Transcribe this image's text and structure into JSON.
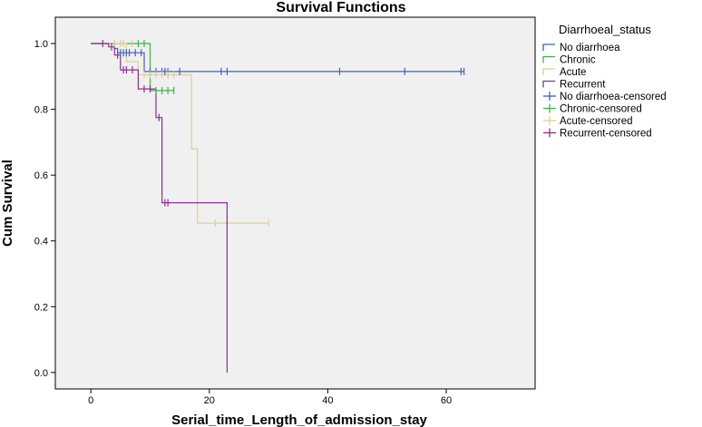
{
  "chart_data": {
    "type": "line",
    "chart_kind": "kaplan-meier step curves",
    "title": "Survival Functions",
    "xlabel": "Serial_time_Length_of_admission_stay",
    "ylabel": "Cum Survival",
    "xlim": [
      -6,
      75
    ],
    "ylim": [
      -0.05,
      1.08
    ],
    "x_ticks": [
      0,
      20,
      40,
      60
    ],
    "y_ticks": [
      0.0,
      0.2,
      0.4,
      0.6,
      0.8,
      1.0
    ],
    "y_tick_labels": [
      "0.0",
      "0.2",
      "0.4",
      "0.6",
      "0.8",
      "1.0"
    ],
    "grid": false,
    "plot_background": "#f0f0f0",
    "legend": {
      "title": "Diarrhoeal_status",
      "position": "right",
      "entries": [
        "No diarrhoea",
        "Chronic",
        "Acute",
        "Recurrent",
        "No diarrhoea-censored",
        "Chronic-censored",
        "Acute-censored",
        "Recurrent-censored"
      ]
    },
    "series": [
      {
        "name": "No diarrhoea",
        "color": "#4060b8",
        "steps": [
          [
            0,
            1.0
          ],
          [
            4,
            1.0
          ],
          [
            4,
            0.985
          ],
          [
            4.5,
            0.985
          ],
          [
            4.5,
            0.972
          ],
          [
            9,
            0.972
          ],
          [
            9,
            0.915
          ],
          [
            63,
            0.915
          ]
        ],
        "censored": [
          [
            5,
            0.972
          ],
          [
            5.5,
            0.972
          ],
          [
            6,
            0.972
          ],
          [
            6.5,
            0.972
          ],
          [
            7.5,
            0.972
          ],
          [
            8.5,
            0.972
          ],
          [
            10,
            0.915
          ],
          [
            11,
            0.915
          ],
          [
            12,
            0.915
          ],
          [
            12.5,
            0.915
          ],
          [
            13,
            0.915
          ],
          [
            15,
            0.915
          ],
          [
            22,
            0.915
          ],
          [
            23,
            0.915
          ],
          [
            42,
            0.915
          ],
          [
            53,
            0.915
          ],
          [
            62.5,
            0.915
          ],
          [
            63,
            0.915
          ]
        ]
      },
      {
        "name": "Chronic",
        "color": "#3cb44b",
        "steps": [
          [
            0,
            1.0
          ],
          [
            10,
            1.0
          ],
          [
            10,
            0.857
          ],
          [
            14,
            0.857
          ]
        ],
        "censored": [
          [
            8,
            1.0
          ],
          [
            9,
            1.0
          ],
          [
            11,
            0.857
          ],
          [
            12,
            0.857
          ],
          [
            13,
            0.857
          ],
          [
            14,
            0.857
          ]
        ]
      },
      {
        "name": "Acute",
        "color": "#e0cf96",
        "steps": [
          [
            0,
            1.0
          ],
          [
            6,
            1.0
          ],
          [
            6,
            0.945
          ],
          [
            8,
            0.945
          ],
          [
            8,
            0.905
          ],
          [
            17,
            0.905
          ],
          [
            17,
            0.68
          ],
          [
            18,
            0.68
          ],
          [
            18,
            0.454
          ],
          [
            30,
            0.454
          ]
        ],
        "censored": [
          [
            4,
            1.0
          ],
          [
            5,
            1.0
          ],
          [
            5.5,
            1.0
          ],
          [
            7,
            1.0
          ],
          [
            9,
            0.905
          ],
          [
            10,
            0.905
          ],
          [
            11,
            0.905
          ],
          [
            12,
            0.905
          ],
          [
            13,
            0.905
          ],
          [
            14,
            0.905
          ],
          [
            21,
            0.454
          ],
          [
            30,
            0.454
          ]
        ]
      },
      {
        "name": "Recurrent",
        "color": "#8b2f8f",
        "steps": [
          [
            0,
            1.0
          ],
          [
            3,
            1.0
          ],
          [
            3,
            0.99
          ],
          [
            4,
            0.99
          ],
          [
            4,
            0.965
          ],
          [
            5,
            0.965
          ],
          [
            5,
            0.92
          ],
          [
            8,
            0.92
          ],
          [
            8,
            0.862
          ],
          [
            11,
            0.862
          ],
          [
            11,
            0.775
          ],
          [
            12,
            0.775
          ],
          [
            12,
            0.516
          ],
          [
            23,
            0.516
          ],
          [
            23,
            0.0
          ]
        ],
        "censored": [
          [
            2,
            1.0
          ],
          [
            3.5,
            0.99
          ],
          [
            4.5,
            0.965
          ],
          [
            5.5,
            0.92
          ],
          [
            6,
            0.92
          ],
          [
            7,
            0.92
          ],
          [
            9,
            0.862
          ],
          [
            10,
            0.862
          ],
          [
            11.5,
            0.775
          ],
          [
            12.5,
            0.516
          ],
          [
            13,
            0.516
          ]
        ]
      }
    ]
  }
}
